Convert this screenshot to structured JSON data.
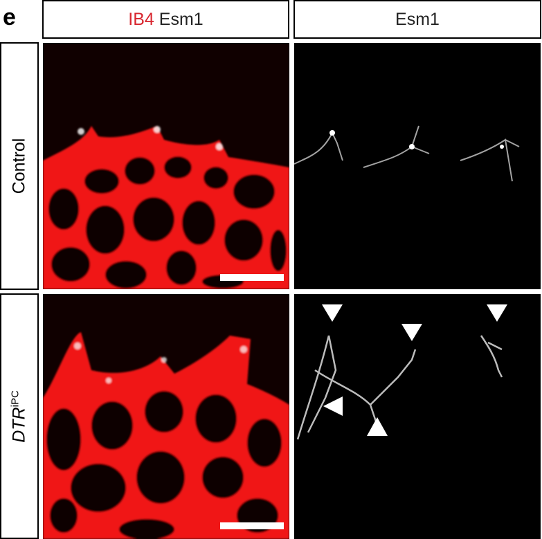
{
  "panel_letter": "e",
  "column_headers": [
    {
      "parts": [
        {
          "text": "IB4",
          "color": "#d8262f"
        },
        {
          "text": " Esm1",
          "color": "#222222"
        }
      ]
    },
    {
      "text": "Esm1"
    }
  ],
  "row_labels": [
    {
      "text": "Control"
    },
    {
      "main": "DTR",
      "sup": "iPC"
    }
  ],
  "colors": {
    "ib4": "#ff1a1a",
    "esm1": "#ffffff",
    "background": "#000000"
  },
  "arrowheads": [
    "down",
    "down",
    "down",
    "left",
    "up"
  ]
}
